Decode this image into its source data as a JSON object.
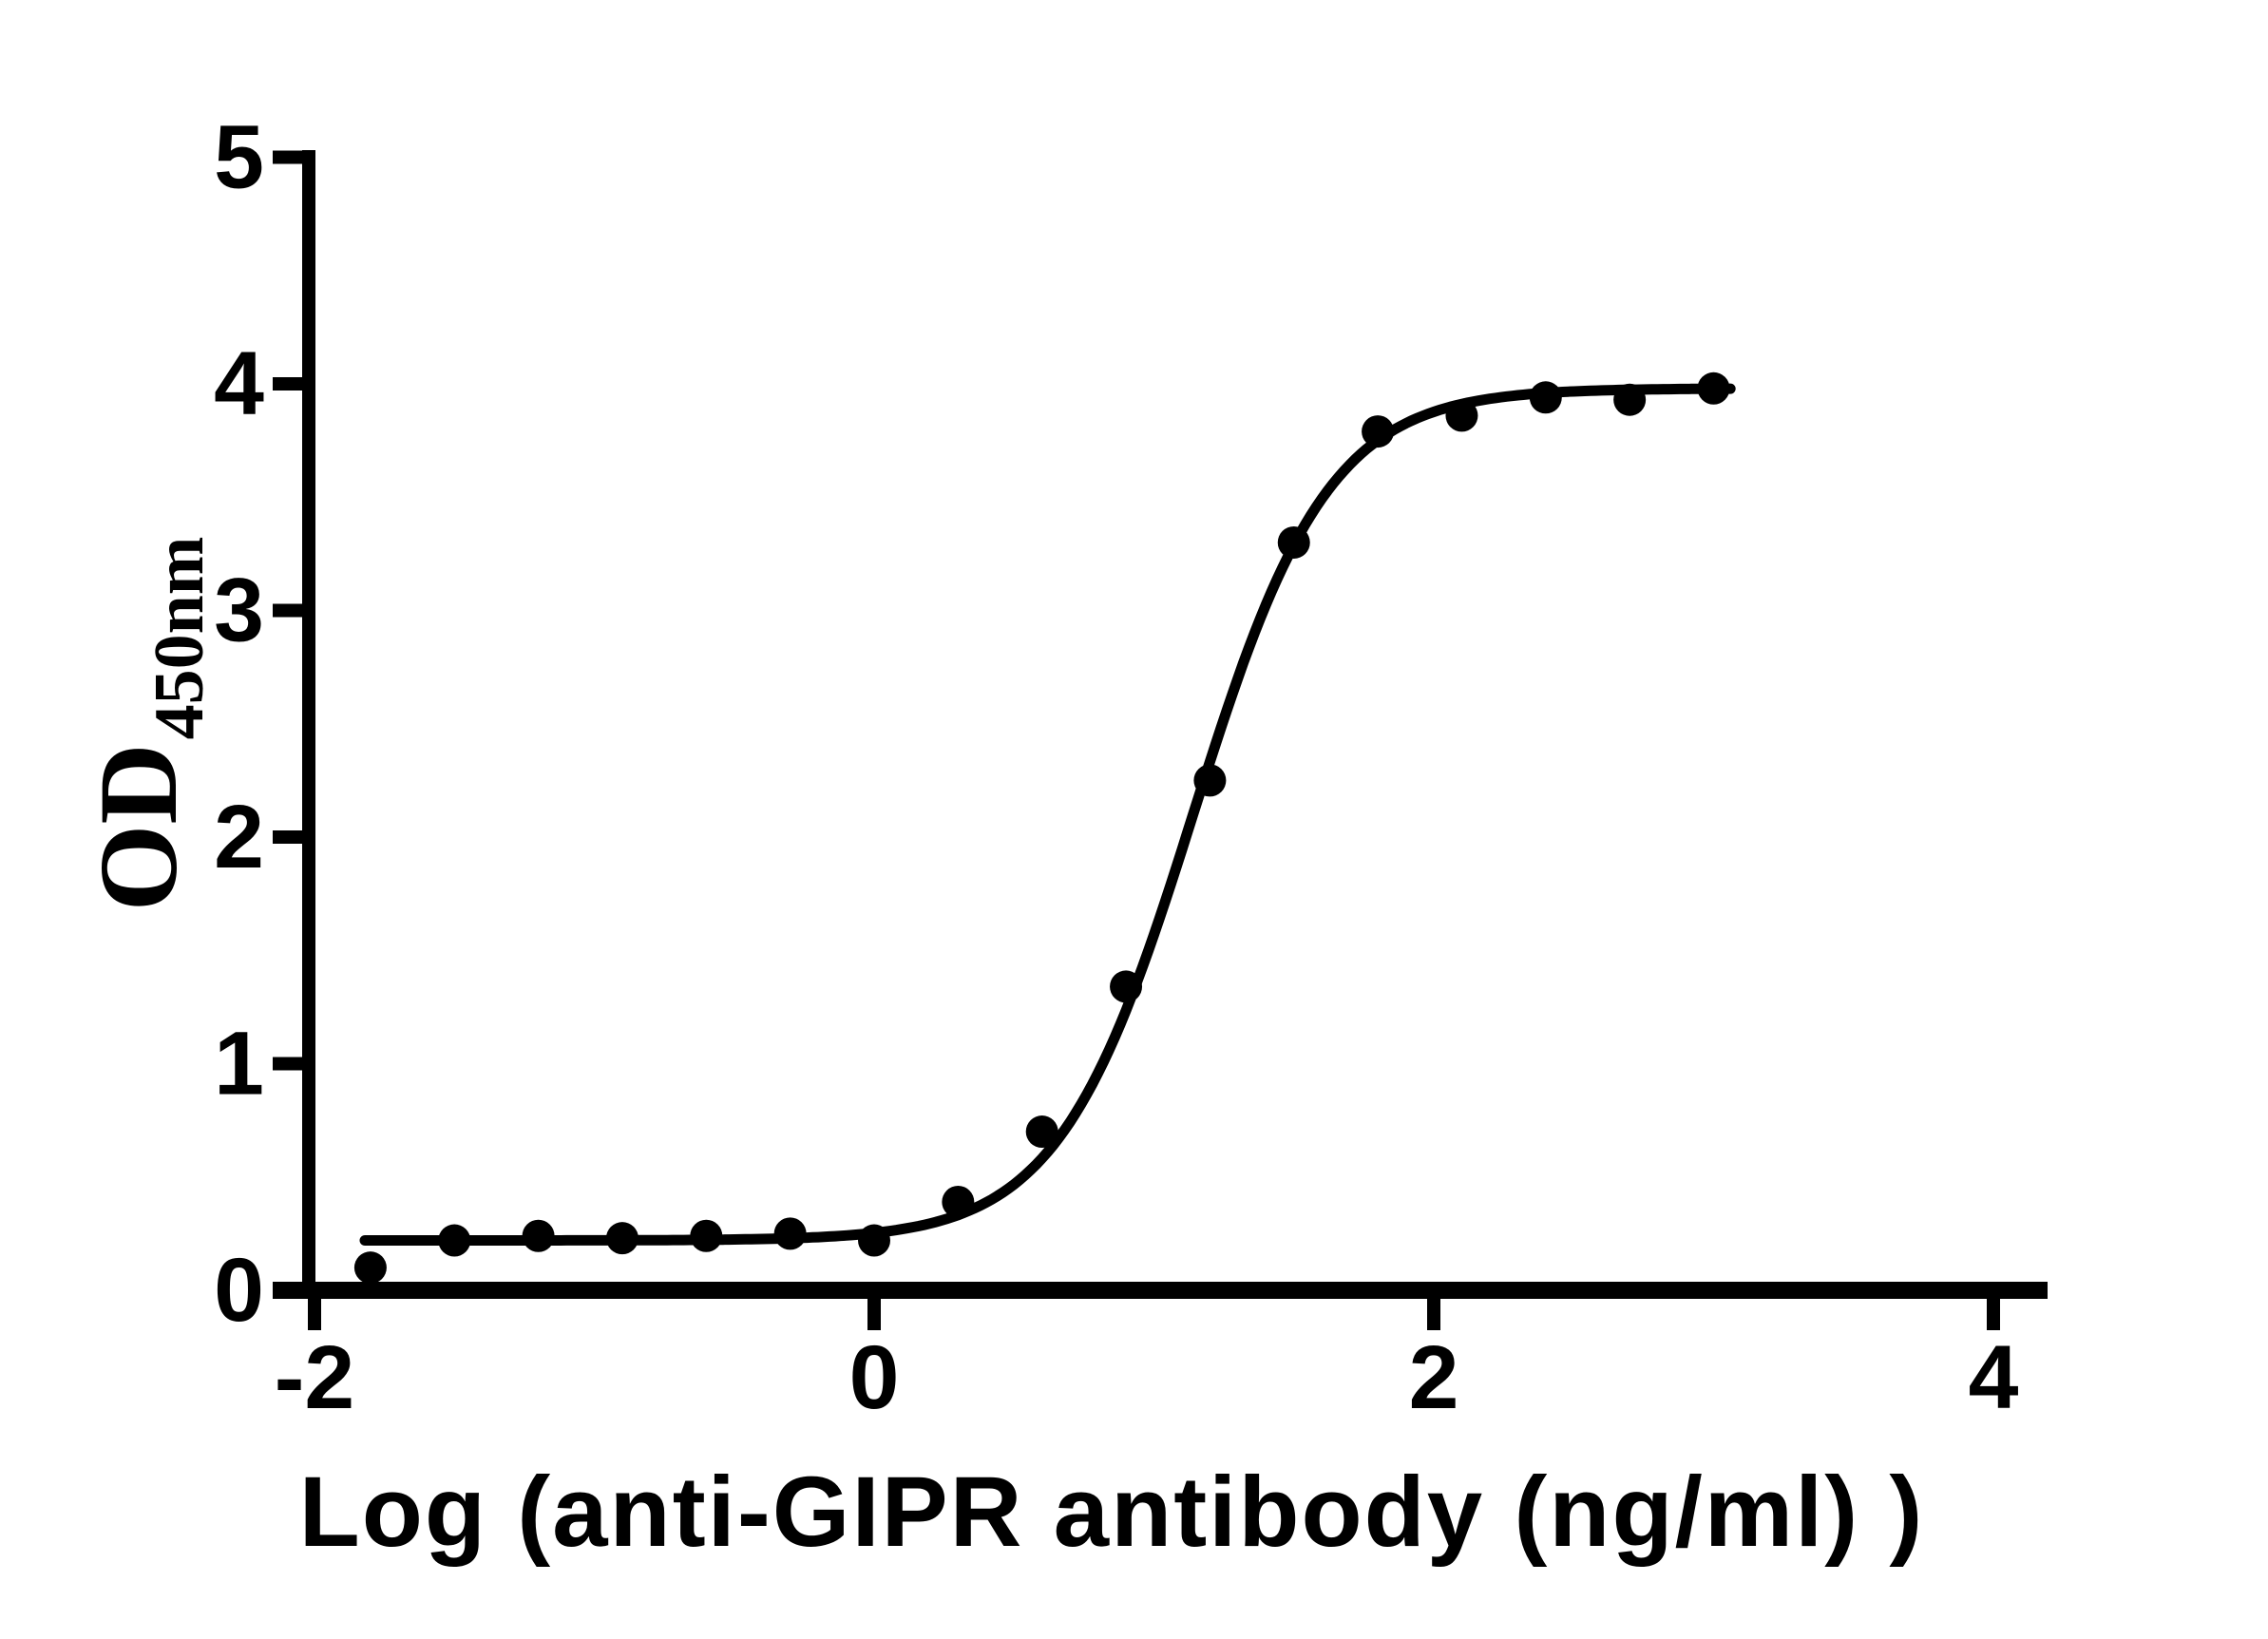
{
  "figure": {
    "background_color": "#ffffff",
    "foreground_color": "#000000"
  },
  "chart_data": {
    "type": "scatter",
    "title": "",
    "xlabel": "Log（anti-GIPR antibody（ng/ml） ）",
    "ylabel_main": "OD",
    "ylabel_sub": "450nm",
    "x_ticks": [
      -2,
      0,
      2,
      4
    ],
    "y_ticks": [
      0,
      1,
      2,
      3,
      4,
      5
    ],
    "xlim": [
      -2,
      4.2
    ],
    "ylim": [
      0,
      5
    ],
    "grid": false,
    "legend": "none",
    "marker_color": "#000000",
    "line_color": "#000000",
    "points": [
      {
        "x": -1.8,
        "y": 0.1
      },
      {
        "x": -1.5,
        "y": 0.22
      },
      {
        "x": -1.2,
        "y": 0.24
      },
      {
        "x": -0.9,
        "y": 0.23
      },
      {
        "x": -0.6,
        "y": 0.24
      },
      {
        "x": -0.3,
        "y": 0.25
      },
      {
        "x": 0.0,
        "y": 0.22
      },
      {
        "x": 0.3,
        "y": 0.39
      },
      {
        "x": 0.6,
        "y": 0.7
      },
      {
        "x": 0.9,
        "y": 1.34
      },
      {
        "x": 1.2,
        "y": 2.25
      },
      {
        "x": 1.5,
        "y": 3.3
      },
      {
        "x": 1.8,
        "y": 3.79
      },
      {
        "x": 2.1,
        "y": 3.86
      },
      {
        "x": 2.4,
        "y": 3.94
      },
      {
        "x": 2.7,
        "y": 3.93
      },
      {
        "x": 3.0,
        "y": 3.98
      }
    ],
    "fit_curve": {
      "model": "four-parameter-logistic",
      "bottom": 0.22,
      "top": 3.98,
      "log_ec50": 1.14,
      "hill_slope": 1.8,
      "x_start": -1.82,
      "x_end": 3.06
    }
  }
}
